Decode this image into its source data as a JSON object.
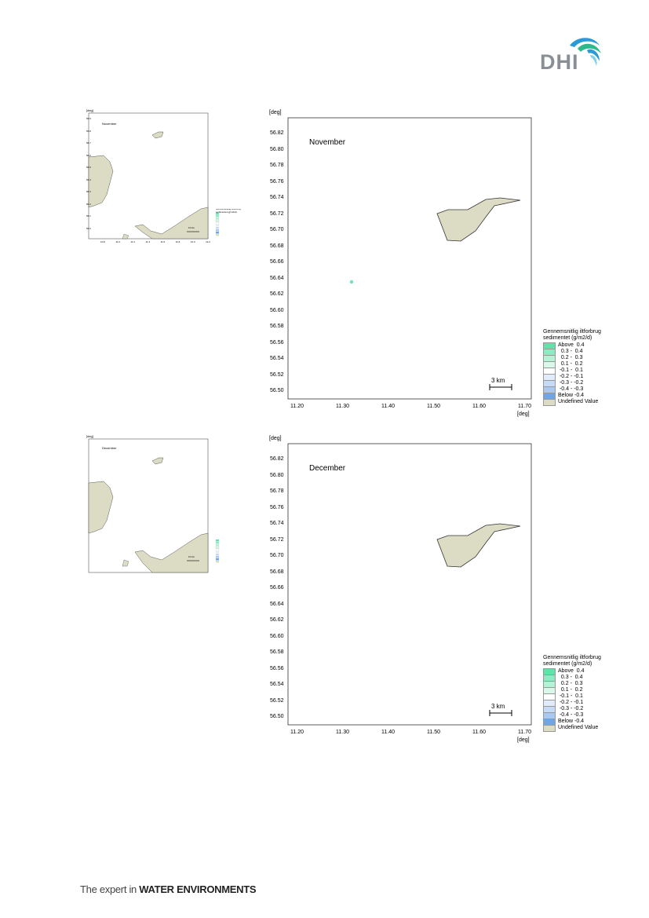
{
  "brand": {
    "logo_text": "DHI",
    "tagline_prefix": "The expert in ",
    "tagline_emph": "WATER ENVIRONMENTS"
  },
  "colors": {
    "land": "#dcdcc4",
    "above_04": "#6ee6b0",
    "accent_blue": "#2b9bd8",
    "accent_green": "#2fb88c"
  },
  "panels": [
    {
      "month": "November",
      "unit_label": "[deg]",
      "y_ticks": [
        "56.82",
        "56.80",
        "56.78",
        "56.76",
        "56.74",
        "56.72",
        "56.70",
        "56.68",
        "56.66",
        "56.64",
        "56.62",
        "56.60",
        "56.58",
        "56.56",
        "56.54",
        "56.52",
        "56.50"
      ],
      "x_ticks": [
        "11.20",
        "11.30",
        "11.40",
        "11.50",
        "11.60",
        "11.70"
      ],
      "scale_label": "3 km",
      "marker": {
        "lon": 11.32,
        "lat": 56.631,
        "class": "Above  0.4"
      }
    },
    {
      "month": "December",
      "unit_label": "[deg]",
      "y_ticks": [
        "56.82",
        "56.80",
        "56.78",
        "56.76",
        "56.74",
        "56.72",
        "56.70",
        "56.68",
        "56.66",
        "56.64",
        "56.62",
        "56.60",
        "56.58",
        "56.56",
        "56.54",
        "56.52",
        "56.50"
      ],
      "x_ticks": [
        "11.20",
        "11.30",
        "11.40",
        "11.50",
        "11.60",
        "11.70"
      ],
      "scale_label": "3 km",
      "marker": {
        "lon": 11.32,
        "lat": 56.631,
        "class": "none"
      }
    }
  ],
  "overview": {
    "unit_label": "[deg]",
    "scale_label": "10 km",
    "y_ticks": [
      "56.9",
      "56.8",
      "56.7",
      "56.6",
      "56.5",
      "56.4",
      "56.3",
      "56.2",
      "56.1",
      "56.0"
    ],
    "x_ticks": [
      "10.8",
      "11.0",
      "11.2",
      "11.4",
      "11.6",
      "11.8",
      "12.0",
      "12.2"
    ]
  },
  "legend": {
    "title_line1": "Gennemsnitlig iltforbrug",
    "title_line2": "sedimentet (g/m2/d)",
    "items": [
      {
        "label": "Above  0.4",
        "color": "#5fe3a8"
      },
      {
        "label": "  0.3 -  0.4",
        "color": "#8bebc2"
      },
      {
        "label": "  0.2 -  0.3",
        "color": "#b4f2d6"
      },
      {
        "label": "  0.1 -  0.2",
        "color": "#d9f8ea"
      },
      {
        "label": " -0.1 -  0.1",
        "color": "#ffffff"
      },
      {
        "label": " -0.2 - -0.1",
        "color": "#e0ecfa"
      },
      {
        "label": " -0.3 - -0.2",
        "color": "#c6dcf6"
      },
      {
        "label": " -0.4 - -0.3",
        "color": "#a8c9f1"
      },
      {
        "label": "Below -0.4",
        "color": "#6fa6e6"
      },
      {
        "label": "Undefined Value",
        "color": "#dcdcc4"
      }
    ]
  }
}
